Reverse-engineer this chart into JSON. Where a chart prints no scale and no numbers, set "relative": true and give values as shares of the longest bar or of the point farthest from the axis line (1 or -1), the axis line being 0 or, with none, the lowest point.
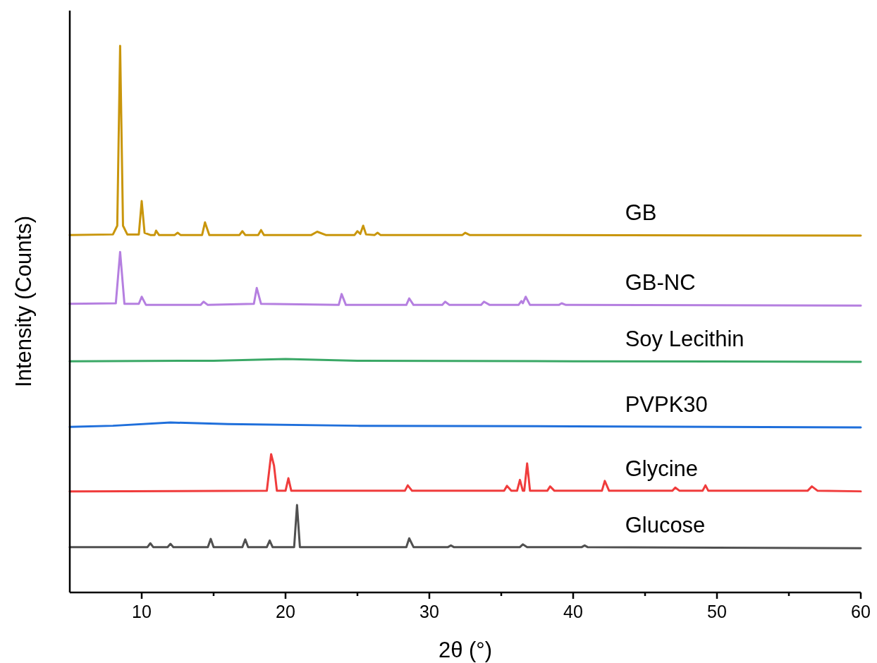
{
  "chart_data": {
    "type": "line",
    "relative": true,
    "xlabel": "2θ (°)",
    "ylabel": "Intensity (Counts)",
    "xlim": [
      5,
      60
    ],
    "xticks": [
      10,
      {
        "value": 15,
        "label": null
      },
      20,
      {
        "value": 25,
        "label": null
      },
      30,
      {
        "value": 35,
        "label": null
      },
      40,
      {
        "value": 45,
        "label": null
      },
      50,
      {
        "value": 55,
        "label": null
      },
      60
    ],
    "grid": false,
    "legend": false,
    "marker": "none",
    "line_style": "solid",
    "series": [
      {
        "name": "GB",
        "color": "#c9960c",
        "x": [
          5,
          8.0,
          8.3,
          8.5,
          8.7,
          9.0,
          9.8,
          10.0,
          10.2,
          10.6,
          10.9,
          11.0,
          11.2,
          12.3,
          12.5,
          12.7,
          14.2,
          14.4,
          14.7,
          16.8,
          17.0,
          17.2,
          18.1,
          18.3,
          18.5,
          21.8,
          22.2,
          22.8,
          24.8,
          25.0,
          25.2,
          25.4,
          25.6,
          26.2,
          26.4,
          26.6,
          32.3,
          32.5,
          32.8,
          60
        ],
        "values": [
          0.654,
          0.655,
          0.671,
          1,
          0.671,
          0.655,
          0.655,
          0.716,
          0.658,
          0.654,
          0.654,
          0.662,
          0.654,
          0.654,
          0.658,
          0.654,
          0.654,
          0.677,
          0.654,
          0.654,
          0.661,
          0.654,
          0.654,
          0.663,
          0.654,
          0.654,
          0.66,
          0.654,
          0.654,
          0.661,
          0.656,
          0.671,
          0.655,
          0.654,
          0.658,
          0.654,
          0.654,
          0.658,
          0.654,
          0.653
        ]
      },
      {
        "name": "GB-NC",
        "color": "#b57fe0",
        "x": [
          5,
          8.2,
          8.5,
          8.8,
          9.8,
          10.0,
          10.3,
          14.1,
          14.3,
          14.6,
          17.8,
          18.0,
          18.3,
          23.7,
          23.9,
          24.2,
          28.4,
          28.6,
          28.9,
          30.9,
          31.1,
          31.4,
          33.6,
          33.8,
          34.2,
          36.2,
          36.4,
          36.5,
          36.7,
          37.0,
          39.0,
          39.2,
          39.5,
          60
        ],
        "values": [
          0.528,
          0.529,
          0.623,
          0.528,
          0.528,
          0.541,
          0.526,
          0.526,
          0.532,
          0.526,
          0.528,
          0.557,
          0.528,
          0.526,
          0.546,
          0.526,
          0.526,
          0.538,
          0.526,
          0.526,
          0.532,
          0.526,
          0.526,
          0.532,
          0.526,
          0.526,
          0.533,
          0.529,
          0.541,
          0.526,
          0.526,
          0.529,
          0.526,
          0.525
        ]
      },
      {
        "name": "Soy Lecithin",
        "color": "#3aa866",
        "x": [
          5,
          15,
          20,
          25,
          40,
          60
        ],
        "values": [
          0.423,
          0.424,
          0.427,
          0.424,
          0.423,
          0.422
        ]
      },
      {
        "name": "PVPK30",
        "color": "#1f6fdb",
        "x": [
          5,
          8,
          12,
          16,
          25,
          40,
          60
        ],
        "values": [
          0.303,
          0.305,
          0.311,
          0.308,
          0.305,
          0.304,
          0.302
        ]
      },
      {
        "name": "Glycine",
        "color": "#f03c3c",
        "x": [
          5,
          18.7,
          19.0,
          19.2,
          19.4,
          20.0,
          20.2,
          20.4,
          28.3,
          28.5,
          28.8,
          35.2,
          35.4,
          35.7,
          36.1,
          36.3,
          36.5,
          36.6,
          36.8,
          37.0,
          38.2,
          38.4,
          38.7,
          42.0,
          42.2,
          42.5,
          46.9,
          47.1,
          47.4,
          49.0,
          49.2,
          49.4,
          56.3,
          56.6,
          57.0,
          60
        ],
        "values": [
          0.185,
          0.186,
          0.253,
          0.232,
          0.186,
          0.186,
          0.209,
          0.186,
          0.186,
          0.196,
          0.186,
          0.186,
          0.195,
          0.186,
          0.186,
          0.206,
          0.186,
          0.186,
          0.236,
          0.186,
          0.186,
          0.194,
          0.186,
          0.186,
          0.204,
          0.186,
          0.186,
          0.192,
          0.186,
          0.186,
          0.196,
          0.186,
          0.186,
          0.194,
          0.186,
          0.185
        ]
      },
      {
        "name": "Glucose",
        "color": "#505050",
        "x": [
          5,
          10.4,
          10.6,
          10.8,
          11.8,
          12.0,
          12.2,
          14.6,
          14.8,
          15.0,
          17.0,
          17.2,
          17.4,
          18.7,
          18.9,
          19.1,
          20.6,
          20.8,
          21.0,
          28.4,
          28.6,
          28.9,
          31.3,
          31.5,
          31.7,
          36.3,
          36.5,
          36.8,
          40.6,
          40.8,
          41.0,
          60
        ],
        "values": [
          0.083,
          0.083,
          0.09,
          0.083,
          0.083,
          0.089,
          0.083,
          0.083,
          0.098,
          0.083,
          0.083,
          0.097,
          0.083,
          0.083,
          0.095,
          0.083,
          0.083,
          0.16,
          0.083,
          0.083,
          0.099,
          0.083,
          0.083,
          0.086,
          0.083,
          0.083,
          0.088,
          0.083,
          0.083,
          0.086,
          0.083,
          0.081
        ]
      }
    ]
  }
}
